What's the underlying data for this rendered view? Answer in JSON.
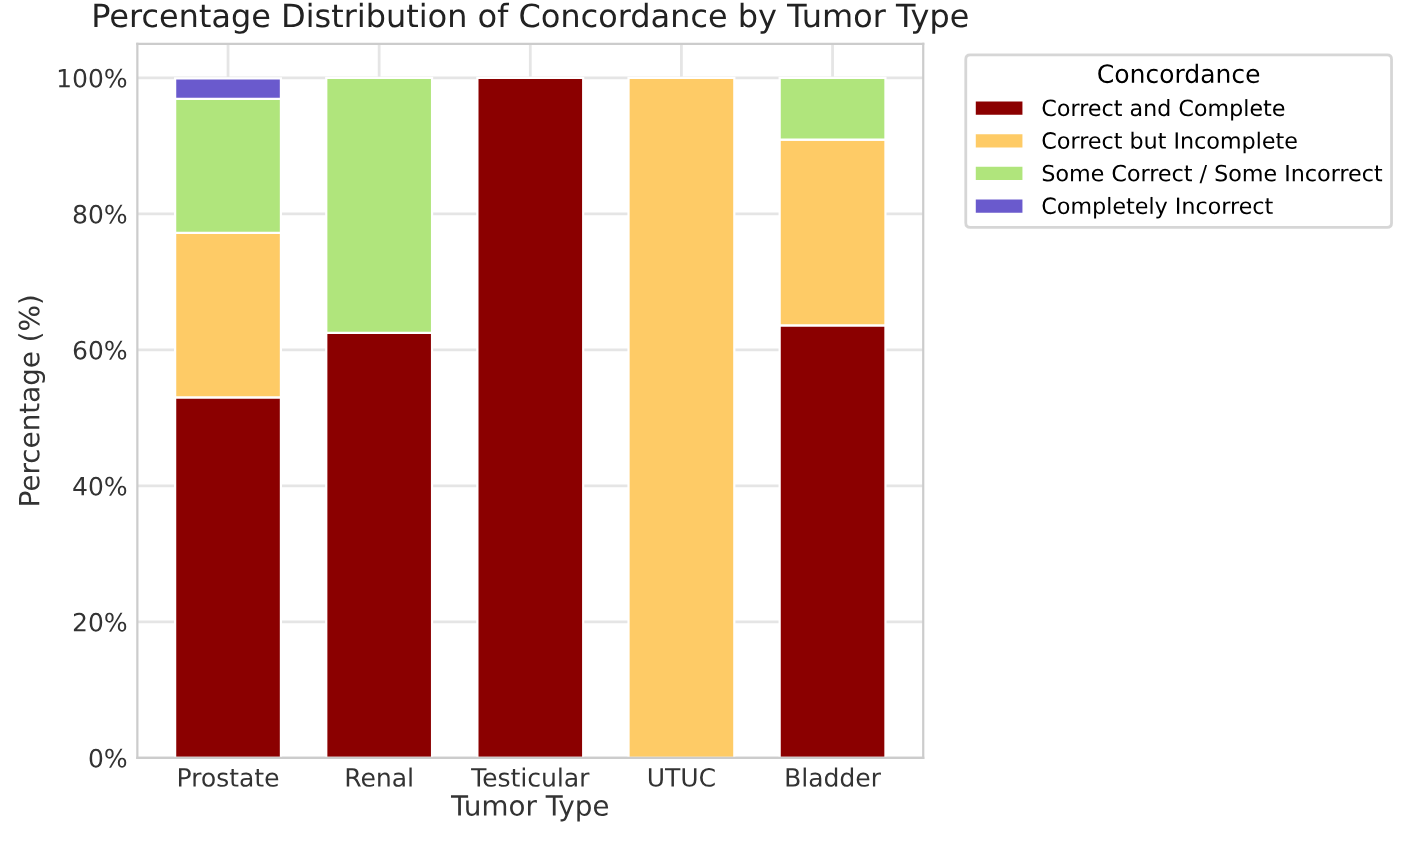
{
  "chart_data": {
    "type": "bar",
    "title": "Percentage Distribution of Concordance by Tumor Type",
    "xlabel": "Tumor Type",
    "ylabel": "Percentage (%)",
    "legend_title": "Concordance",
    "categories": [
      "Prostate",
      "Renal",
      "Testicular",
      "UTUC",
      "Bladder"
    ],
    "stacked": true,
    "series": [
      {
        "name": "Correct and Complete",
        "color": "#8b0000",
        "values": [
          53.0,
          62.5,
          100,
          0,
          63.6
        ]
      },
      {
        "name": "Correct but Incomplete",
        "color": "#fecb66",
        "values": [
          24.2,
          0,
          0,
          100,
          27.3
        ]
      },
      {
        "name": "Some Correct / Some Incorrect",
        "color": "#b0e57c",
        "values": [
          19.7,
          37.5,
          0,
          0,
          9.1
        ]
      },
      {
        "name": "Completely Incorrect",
        "color": "#6a5acd",
        "values": [
          3.0,
          0,
          0,
          0,
          0
        ]
      }
    ],
    "ylim": [
      0,
      105
    ],
    "yticks": [
      {
        "value": 0,
        "label": "0%"
      },
      {
        "value": 20,
        "label": "20%"
      },
      {
        "value": 40,
        "label": "40%"
      },
      {
        "value": 60,
        "label": "60%"
      },
      {
        "value": 80,
        "label": "80%"
      },
      {
        "value": 100,
        "label": "100%"
      }
    ],
    "grid": true,
    "legend": "top right"
  }
}
